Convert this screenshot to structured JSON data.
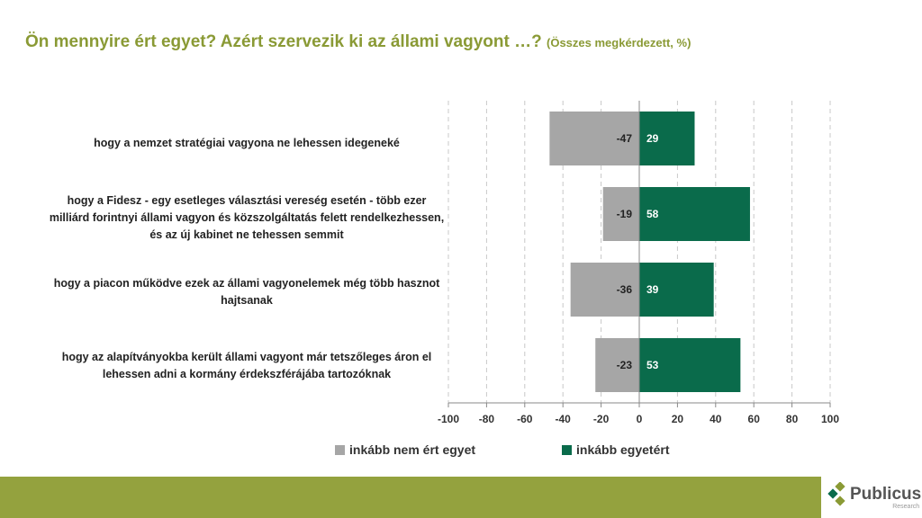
{
  "title": "Ön mennyire ért egyet? Azért szervezik ki az állami vagyont …?",
  "subtitle": "(Összes megkérdezett, %)",
  "chart_data": {
    "type": "bar",
    "orientation": "horizontal",
    "categories": [
      "hogy a nemzet stratégiai vagyona ne lehessen idegeneké",
      "hogy a Fidesz - egy esetleges választási vereség esetén - több ezer milliárd forintnyi állami vagyon és közszolgáltatás felett rendelkezhessen, és az új kabinet ne tehessen semmit",
      "hogy a piacon működve ezek az állami vagyonelemek még több hasznot hajtsanak",
      "hogy az alapítványokba került állami vagyont már tetszőleges áron el lehessen adni a kormány érdekszférájába tartozóknak"
    ],
    "series": [
      {
        "name": "inkább nem ért egyet",
        "values": [
          -47,
          -19,
          -36,
          -23
        ],
        "color": "#a6a6a6"
      },
      {
        "name": "inkább egyetért",
        "values": [
          29,
          58,
          39,
          53
        ],
        "color": "#0a6b4b"
      }
    ],
    "xlim": [
      -100,
      100
    ],
    "xticks": [
      "-100",
      "-80",
      "-60",
      "-40",
      "-20",
      "0",
      "20",
      "40",
      "60",
      "80",
      "100"
    ],
    "grid": true,
    "legend": "bottom"
  },
  "logo": {
    "name": "Publicus",
    "sub": "Research"
  }
}
